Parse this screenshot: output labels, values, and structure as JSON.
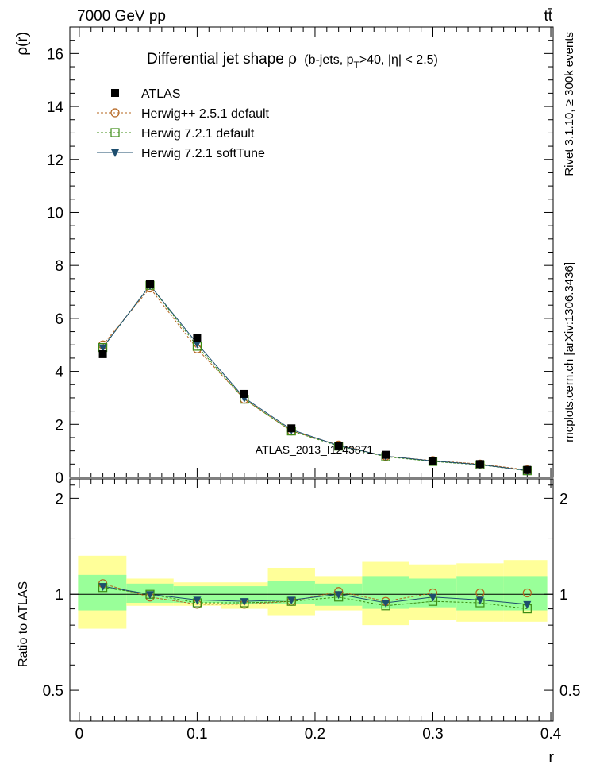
{
  "header": {
    "energy_label": "7000 GeV pp",
    "process_label": "tt̄"
  },
  "side_labels": {
    "rivet": "Rivet 3.1.10, ≥ 300k events",
    "mcplots": "mcplots.cern.ch [arXiv:1306.3436]"
  },
  "watermark": "ATLAS_2013_I1243871",
  "chart_data": [
    {
      "type": "scatter",
      "title_main": "Differential jet shape  ρ",
      "title_detail": "(b-jets, p",
      "title_sub": "T",
      "title_rest": ">40, |η| < 2.5)",
      "ylabel": "ρ(r)",
      "xlabel": "r",
      "xlim": [
        -0.008,
        0.402
      ],
      "ylim": [
        0,
        17
      ],
      "yticks": [
        0,
        2,
        4,
        6,
        8,
        10,
        12,
        14,
        16
      ],
      "ytick_labels": [
        "0",
        "2",
        "4",
        "6",
        "8",
        "10",
        "12",
        "14",
        "16"
      ],
      "legend_position": "top-left",
      "x": [
        0.02,
        0.06,
        0.1,
        0.14,
        0.18,
        0.22,
        0.26,
        0.3,
        0.34,
        0.38
      ],
      "series": [
        {
          "name": "ATLAS",
          "color": "#000000",
          "marker": "filled-square",
          "line": "none",
          "values": [
            4.65,
            7.3,
            5.25,
            3.15,
            1.85,
            1.2,
            0.85,
            0.62,
            0.5,
            0.28
          ]
        },
        {
          "name": "Herwig++ 2.5.1 default",
          "color": "#b4641e",
          "marker": "open-circle",
          "line": "dashed",
          "values": [
            5.0,
            7.15,
            4.85,
            2.95,
            1.75,
            1.22,
            0.8,
            0.63,
            0.5,
            0.28
          ]
        },
        {
          "name": "Herwig 7.2.1 default",
          "color": "#3c8c14",
          "marker": "open-square",
          "line": "dashed",
          "values": [
            4.9,
            7.25,
            4.95,
            2.95,
            1.75,
            1.18,
            0.78,
            0.6,
            0.47,
            0.25
          ]
        },
        {
          "name": "Herwig 7.2.1 softTune",
          "color": "#1e4e6e",
          "marker": "filled-triangle-down",
          "line": "solid",
          "values": [
            4.9,
            7.25,
            5.05,
            3.0,
            1.8,
            1.2,
            0.8,
            0.62,
            0.48,
            0.26
          ]
        }
      ]
    },
    {
      "type": "scatter",
      "ylabel": "Ratio to ATLAS",
      "xlabel": "r",
      "ylim": [
        0.4,
        2.3
      ],
      "yticks": [
        0.5,
        1,
        2
      ],
      "ytick_labels": [
        "0.5",
        "1",
        "2"
      ],
      "xticks": [
        0,
        0.1,
        0.2,
        0.3,
        0.4
      ],
      "xtick_labels": [
        "0",
        "0.1",
        "0.2",
        "0.3",
        "0.4"
      ],
      "x_edges": [
        -0.001,
        0.04,
        0.08,
        0.12,
        0.16,
        0.2,
        0.24,
        0.28,
        0.32,
        0.36,
        0.397
      ],
      "band_outer": {
        "color": "#ffff99",
        "low": [
          0.78,
          0.92,
          0.92,
          0.9,
          0.86,
          0.89,
          0.8,
          0.83,
          0.82,
          0.82
        ],
        "high": [
          1.32,
          1.12,
          1.09,
          1.09,
          1.21,
          1.14,
          1.27,
          1.24,
          1.25,
          1.28
        ]
      },
      "band_inner": {
        "color": "#99ff99",
        "low": [
          0.89,
          0.94,
          0.94,
          0.93,
          0.93,
          0.92,
          0.9,
          0.91,
          0.89,
          0.89
        ],
        "high": [
          1.15,
          1.08,
          1.06,
          1.06,
          1.1,
          1.08,
          1.14,
          1.12,
          1.14,
          1.14
        ]
      },
      "x": [
        0.02,
        0.06,
        0.1,
        0.14,
        0.18,
        0.22,
        0.26,
        0.3,
        0.34,
        0.38
      ],
      "series": [
        {
          "name": "Herwig++ 2.5.1 default",
          "color": "#b4641e",
          "marker": "open-circle",
          "line": "dashed",
          "values": [
            1.08,
            0.98,
            0.93,
            0.93,
            0.95,
            1.02,
            0.95,
            1.01,
            1.01,
            1.01
          ]
        },
        {
          "name": "Herwig 7.2.1 default",
          "color": "#3c8c14",
          "marker": "open-square",
          "line": "dashed",
          "values": [
            1.05,
            1.0,
            0.94,
            0.94,
            0.95,
            0.98,
            0.92,
            0.95,
            0.94,
            0.9
          ]
        },
        {
          "name": "Herwig 7.2.1 softTune",
          "color": "#1e4e6e",
          "marker": "filled-triangle-down",
          "line": "solid",
          "values": [
            1.06,
            1.0,
            0.96,
            0.95,
            0.96,
            1.0,
            0.94,
            0.98,
            0.96,
            0.93
          ]
        }
      ]
    }
  ]
}
